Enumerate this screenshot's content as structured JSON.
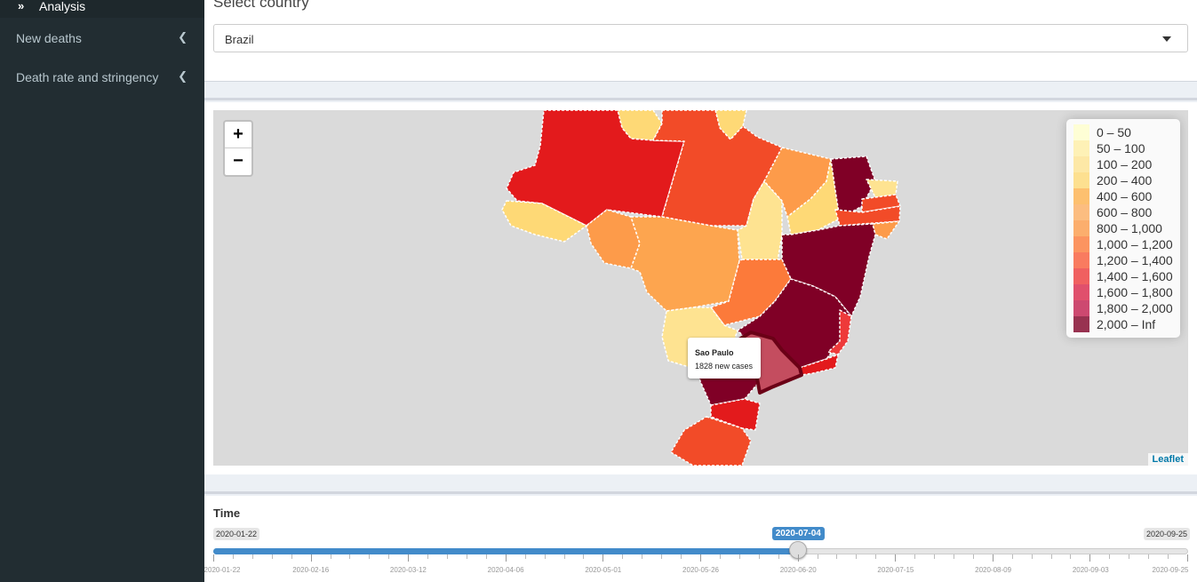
{
  "sidebar": {
    "active_item": {
      "label": "Analysis",
      "icon": "double-chevron-right-icon"
    },
    "items": [
      {
        "label": "New deaths",
        "icon": "chevron-left-icon"
      },
      {
        "label": "Death rate and stringency",
        "icon": "chevron-left-icon"
      }
    ]
  },
  "country_select": {
    "label": "Select country",
    "value": "Brazil"
  },
  "map": {
    "zoom_in": "+",
    "zoom_out": "−",
    "attribution": "Leaflet",
    "tooltip": {
      "title": "Sao Paulo",
      "body": "1828 new cases"
    },
    "legend": [
      {
        "label": "0 – 50",
        "color": "#ffffcc"
      },
      {
        "label": "50 – 100",
        "color": "#ffefa5"
      },
      {
        "label": "100 – 200",
        "color": "#fee391"
      },
      {
        "label": "200 – 400",
        "color": "#fed976"
      },
      {
        "label": "400 – 600",
        "color": "#feb24c"
      },
      {
        "label": "600 – 800",
        "color": "#fdae61"
      },
      {
        "label": "800 – 1,000",
        "color": "#fd9b4a"
      },
      {
        "label": "1,000 – 1,200",
        "color": "#fc7a3a"
      },
      {
        "label": "1,200 – 1,400",
        "color": "#f95b38"
      },
      {
        "label": "1,400 – 1,600",
        "color": "#ee3a3a"
      },
      {
        "label": "1,600 – 1,800",
        "color": "#d92548"
      },
      {
        "label": "1,800 – 2,000",
        "color": "#c21d4e"
      },
      {
        "label": "2,000 – Inf",
        "color": "#800026"
      }
    ]
  },
  "time_slider": {
    "label": "Time",
    "min": "2020-01-22",
    "max": "2020-09-25",
    "current": "2020-07-04",
    "progress": 0.6,
    "grid_labels": [
      "2020-01-22",
      "2020-02-16",
      "2020-03-12",
      "2020-04-06",
      "2020-05-01",
      "2020-05-26",
      "2020-06-20",
      "2020-07-15",
      "2020-08-09",
      "2020-09-03",
      "2020-09-25"
    ]
  }
}
